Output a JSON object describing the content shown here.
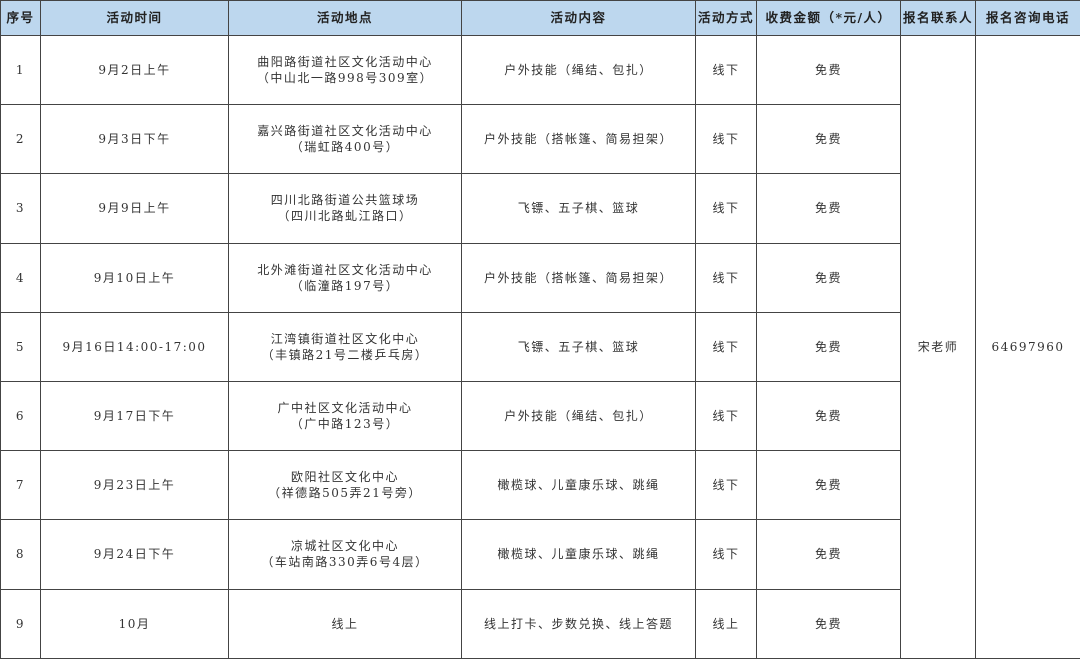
{
  "headers": [
    "序号",
    "活动时间",
    "活动地点",
    "活动内容",
    "活动方式",
    "收费金额（*元/人）",
    "报名联系人",
    "报名咨询电话"
  ],
  "contact": "宋老师",
  "phone": "64697960",
  "header_color": "#bdd7ee",
  "rows": [
    {
      "no": "1",
      "time": "9月2日上午",
      "place": "曲阳路街道社区文化活动中心",
      "address": "（中山北一路998号309室）",
      "content": "户外技能（绳结、包扎）",
      "mode": "线下",
      "fee": "免费"
    },
    {
      "no": "2",
      "time": "9月3日下午",
      "place": "嘉兴路街道社区文化活动中心",
      "address": "（瑞虹路400号）",
      "content": "户外技能（搭帐篷、简易担架）",
      "mode": "线下",
      "fee": "免费"
    },
    {
      "no": "3",
      "time": "9月9日上午",
      "place": "四川北路街道公共篮球场",
      "address": "（四川北路虬江路口）",
      "content": "飞镖、五子棋、篮球",
      "mode": "线下",
      "fee": "免费"
    },
    {
      "no": "4",
      "time": "9月10日上午",
      "place": "北外滩街道社区文化活动中心",
      "address": "（临潼路197号）",
      "content": "户外技能（搭帐篷、简易担架）",
      "mode": "线下",
      "fee": "免费"
    },
    {
      "no": "5",
      "time": "9月16日14:00-17:00",
      "place": "江湾镇街道社区文化中心",
      "address": "（丰镇路21号二楼乒乓房）",
      "content": "飞镖、五子棋、篮球",
      "mode": "线下",
      "fee": "免费"
    },
    {
      "no": "6",
      "time": "9月17日下午",
      "place": "广中社区文化活动中心",
      "address": "（广中路123号）",
      "content": "户外技能（绳结、包扎）",
      "mode": "线下",
      "fee": "免费"
    },
    {
      "no": "7",
      "time": "9月23日上午",
      "place": "欧阳社区文化中心",
      "address": "（祥德路505弄21号旁）",
      "content": "橄榄球、儿童康乐球、跳绳",
      "mode": "线下",
      "fee": "免费"
    },
    {
      "no": "8",
      "time": "9月24日下午",
      "place": "凉城社区文化中心",
      "address": "（车站南路330弄6号4层）",
      "content": "橄榄球、儿童康乐球、跳绳",
      "mode": "线下",
      "fee": "免费"
    },
    {
      "no": "9",
      "time": "10月",
      "place": "线上",
      "address": "",
      "content": "线上打卡、步数兑换、线上答题",
      "mode": "线上",
      "fee": "免费"
    }
  ]
}
